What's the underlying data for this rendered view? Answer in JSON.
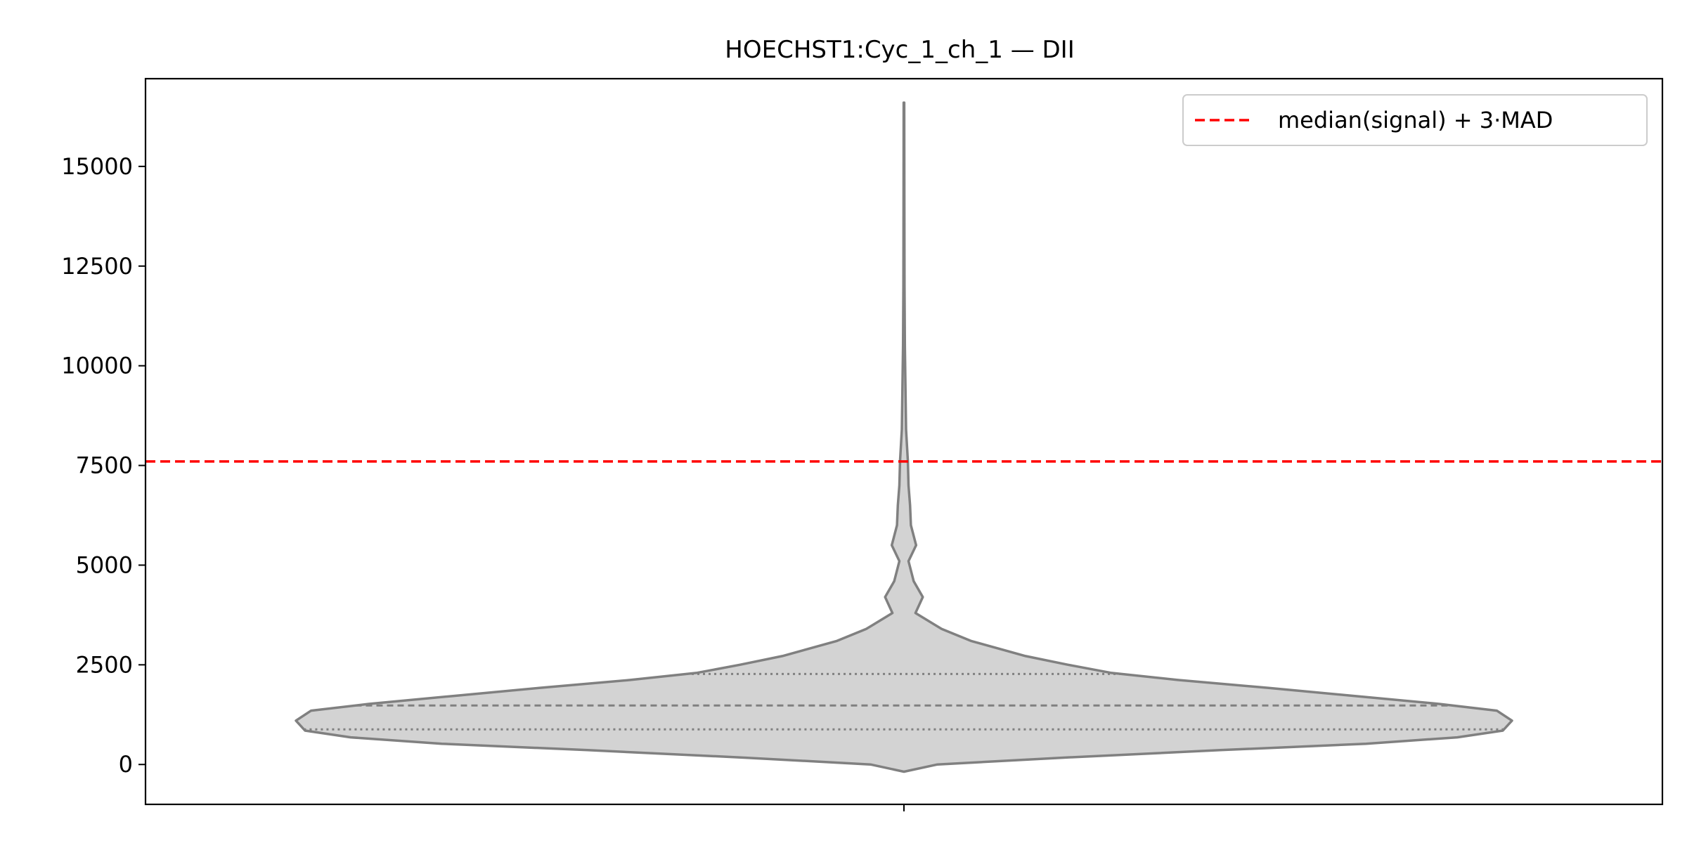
{
  "chart_data": {
    "type": "violin",
    "title": "HOECHST1:Cyc_1_ch_1 — DII",
    "xlabel": "",
    "ylabel": "",
    "ylim": [
      -1000,
      17200
    ],
    "yticks": [
      0,
      2500,
      5000,
      7500,
      10000,
      12500,
      15000
    ],
    "grid": false,
    "legend": {
      "placement": "top-right",
      "entries": [
        {
          "label": "median(signal) + 3·MAD",
          "color": "#ff0000",
          "style": "dashed"
        }
      ]
    },
    "threshold": {
      "value": 7600,
      "color": "#ff0000"
    },
    "violin": {
      "fill": "#d3d3d3",
      "edge": "#808080",
      "min": -180,
      "max": 16600,
      "quartiles": {
        "q1": 880,
        "median": 1480,
        "q3": 2270
      },
      "density_profile": [
        {
          "y": -180,
          "w": 0.0
        },
        {
          "y": 0,
          "w": 0.055
        },
        {
          "y": 170,
          "w": 0.26
        },
        {
          "y": 360,
          "w": 0.52
        },
        {
          "y": 520,
          "w": 0.76
        },
        {
          "y": 680,
          "w": 0.91
        },
        {
          "y": 850,
          "w": 0.985
        },
        {
          "y": 1100,
          "w": 1.0
        },
        {
          "y": 1350,
          "w": 0.975
        },
        {
          "y": 1520,
          "w": 0.88
        },
        {
          "y": 1720,
          "w": 0.74
        },
        {
          "y": 1920,
          "w": 0.6
        },
        {
          "y": 2120,
          "w": 0.45
        },
        {
          "y": 2300,
          "w": 0.34
        },
        {
          "y": 2500,
          "w": 0.27
        },
        {
          "y": 2720,
          "w": 0.2
        },
        {
          "y": 2900,
          "w": 0.157
        },
        {
          "y": 3100,
          "w": 0.11
        },
        {
          "y": 3400,
          "w": 0.062
        },
        {
          "y": 3800,
          "w": 0.019
        },
        {
          "y": 4200,
          "w": 0.031
        },
        {
          "y": 4600,
          "w": 0.016
        },
        {
          "y": 5100,
          "w": 0.0075
        },
        {
          "y": 5500,
          "w": 0.02
        },
        {
          "y": 6000,
          "w": 0.0115
        },
        {
          "y": 6500,
          "w": 0.01
        },
        {
          "y": 7000,
          "w": 0.0075
        },
        {
          "y": 7600,
          "w": 0.0065
        },
        {
          "y": 8400,
          "w": 0.0035
        },
        {
          "y": 9400,
          "w": 0.0025
        },
        {
          "y": 10500,
          "w": 0.0015
        },
        {
          "y": 12000,
          "w": 0.0009
        },
        {
          "y": 14000,
          "w": 0.0007
        },
        {
          "y": 16600,
          "w": 0.0005
        }
      ]
    }
  }
}
